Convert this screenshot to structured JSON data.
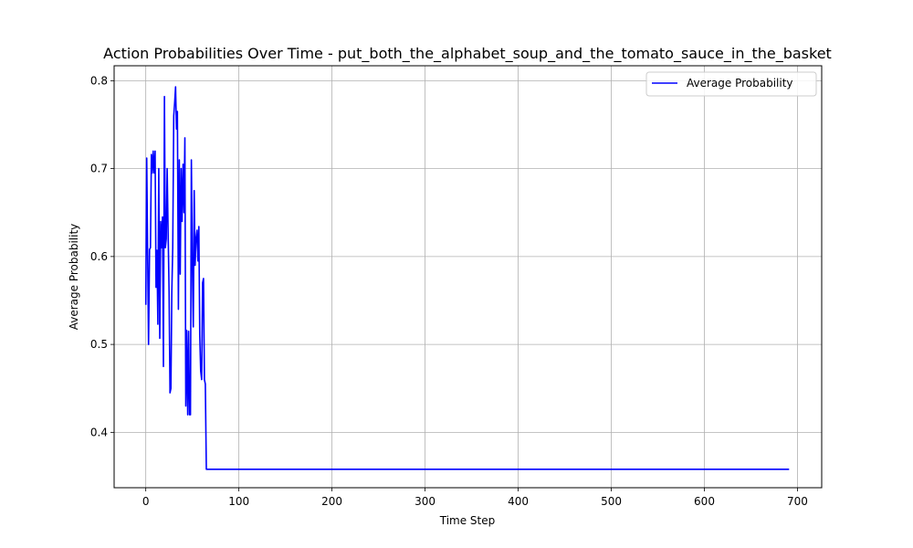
{
  "chart_data": {
    "type": "line",
    "title": "Action Probabilities Over Time - put_both_the_alphabet_soup_and_the_tomato_sauce_in_the_basket",
    "xlabel": "Time Step",
    "ylabel": "Average Probability",
    "xlim": [
      -34,
      726
    ],
    "ylim": [
      0.337,
      0.817
    ],
    "xticks": [
      0,
      100,
      200,
      300,
      400,
      500,
      600,
      700
    ],
    "yticks": [
      0.4,
      0.5,
      0.6,
      0.7,
      0.8
    ],
    "xtick_labels": [
      "0",
      "100",
      "200",
      "300",
      "400",
      "500",
      "600",
      "700"
    ],
    "ytick_labels": [
      "0.4",
      "0.5",
      "0.6",
      "0.7",
      "0.8"
    ],
    "grid": true,
    "legend_position": "top-right",
    "series": [
      {
        "name": "Average Probability",
        "color": "#0000ff",
        "x": [
          0,
          1,
          2,
          3,
          4,
          5,
          6,
          7,
          8,
          9,
          10,
          11,
          12,
          13,
          14,
          15,
          16,
          17,
          18,
          19,
          20,
          21,
          22,
          23,
          24,
          25,
          26,
          27,
          28,
          29,
          30,
          31,
          32,
          33,
          34,
          35,
          36,
          37,
          38,
          39,
          40,
          41,
          42,
          43,
          44,
          45,
          46,
          47,
          48,
          49,
          50,
          51,
          52,
          53,
          54,
          55,
          56,
          57,
          58,
          59,
          60,
          61,
          62,
          63,
          64,
          65,
          66,
          67,
          68,
          69,
          70,
          71,
          72,
          73,
          74,
          75,
          76,
          77,
          691
        ],
        "y": [
          0.545,
          0.712,
          0.604,
          0.5,
          0.608,
          0.61,
          0.716,
          0.695,
          0.72,
          0.695,
          0.72,
          0.565,
          0.607,
          0.523,
          0.7,
          0.507,
          0.64,
          0.61,
          0.645,
          0.475,
          0.782,
          0.61,
          0.62,
          0.7,
          0.63,
          0.56,
          0.445,
          0.45,
          0.56,
          0.61,
          0.76,
          0.775,
          0.793,
          0.745,
          0.765,
          0.54,
          0.71,
          0.58,
          0.7,
          0.64,
          0.705,
          0.65,
          0.735,
          0.43,
          0.516,
          0.42,
          0.515,
          0.42,
          0.42,
          0.71,
          0.59,
          0.52,
          0.675,
          0.59,
          0.62,
          0.63,
          0.595,
          0.634,
          0.51,
          0.47,
          0.46,
          0.57,
          0.575,
          0.46,
          0.455,
          0.358,
          0.358,
          0.358,
          0.358,
          0.358,
          0.358,
          0.358,
          0.358,
          0.358,
          0.358,
          0.358,
          0.358,
          0.358,
          0.358
        ]
      }
    ]
  }
}
